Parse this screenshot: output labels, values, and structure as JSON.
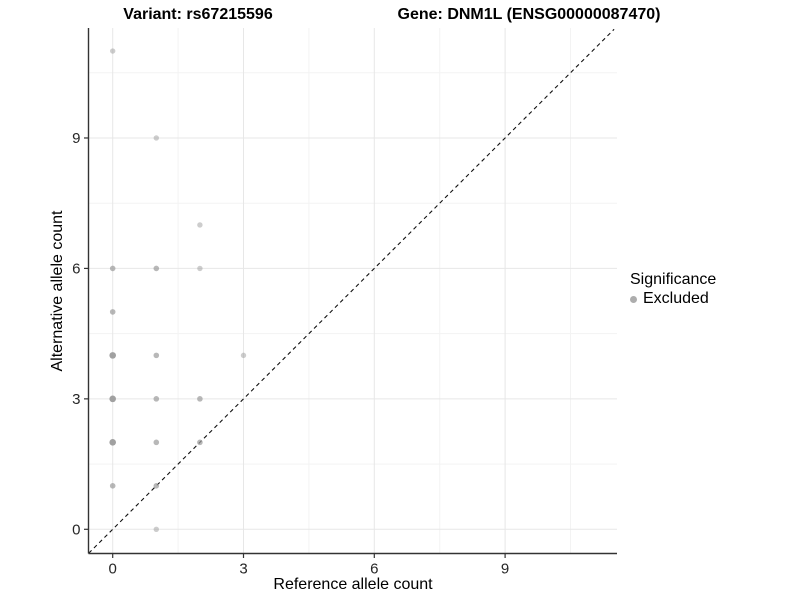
{
  "chart_data": {
    "type": "scatter",
    "titles": {
      "left": "Variant: rs67215596",
      "right": "Gene: DNM1L (ENSG00000087470)"
    },
    "xlabel": "Reference allele count",
    "ylabel": "Alternative allele count",
    "xlim": [
      -0.55,
      11.5
    ],
    "ylim": [
      -0.55,
      11.5
    ],
    "xticks": [
      0,
      3,
      6,
      9
    ],
    "yticks": [
      0,
      3,
      6,
      9
    ],
    "minor_gridlines": [
      1.5,
      4.5,
      7.5,
      10.5
    ],
    "grid": true,
    "legend_position": "right",
    "reference_line": {
      "type": "identity y=x",
      "style": "dashed",
      "color": "#111111"
    },
    "legend": {
      "title": "Significance",
      "items": [
        {
          "label": "Excluded",
          "color": "#adadad"
        }
      ]
    },
    "series": [
      {
        "name": "Excluded",
        "color": "#9c9c9c",
        "points": [
          {
            "x": 0,
            "y": 11,
            "shade": "light"
          },
          {
            "x": 1,
            "y": 9,
            "shade": "light"
          },
          {
            "x": 2,
            "y": 7,
            "shade": "light"
          },
          {
            "x": 0,
            "y": 6,
            "shade": "medium"
          },
          {
            "x": 1,
            "y": 6,
            "shade": "medium"
          },
          {
            "x": 2,
            "y": 6,
            "shade": "light"
          },
          {
            "x": 0,
            "y": 5,
            "shade": "medium"
          },
          {
            "x": 0,
            "y": 4,
            "shade": "dark"
          },
          {
            "x": 1,
            "y": 4,
            "shade": "medium"
          },
          {
            "x": 3,
            "y": 4,
            "shade": "light"
          },
          {
            "x": 0,
            "y": 3,
            "shade": "dark"
          },
          {
            "x": 1,
            "y": 3,
            "shade": "medium"
          },
          {
            "x": 2,
            "y": 3,
            "shade": "medium"
          },
          {
            "x": 0,
            "y": 2,
            "shade": "dark"
          },
          {
            "x": 1,
            "y": 2,
            "shade": "medium"
          },
          {
            "x": 2,
            "y": 2,
            "shade": "medium"
          },
          {
            "x": 0,
            "y": 1,
            "shade": "medium"
          },
          {
            "x": 1,
            "y": 1,
            "shade": "medium"
          },
          {
            "x": 1,
            "y": 0,
            "shade": "light"
          }
        ]
      }
    ],
    "colors": {
      "grid_major": "#e7e7e7",
      "grid_minor": "#f3f3f3",
      "axis_line": "#333333",
      "tick_text": "#262626"
    }
  }
}
